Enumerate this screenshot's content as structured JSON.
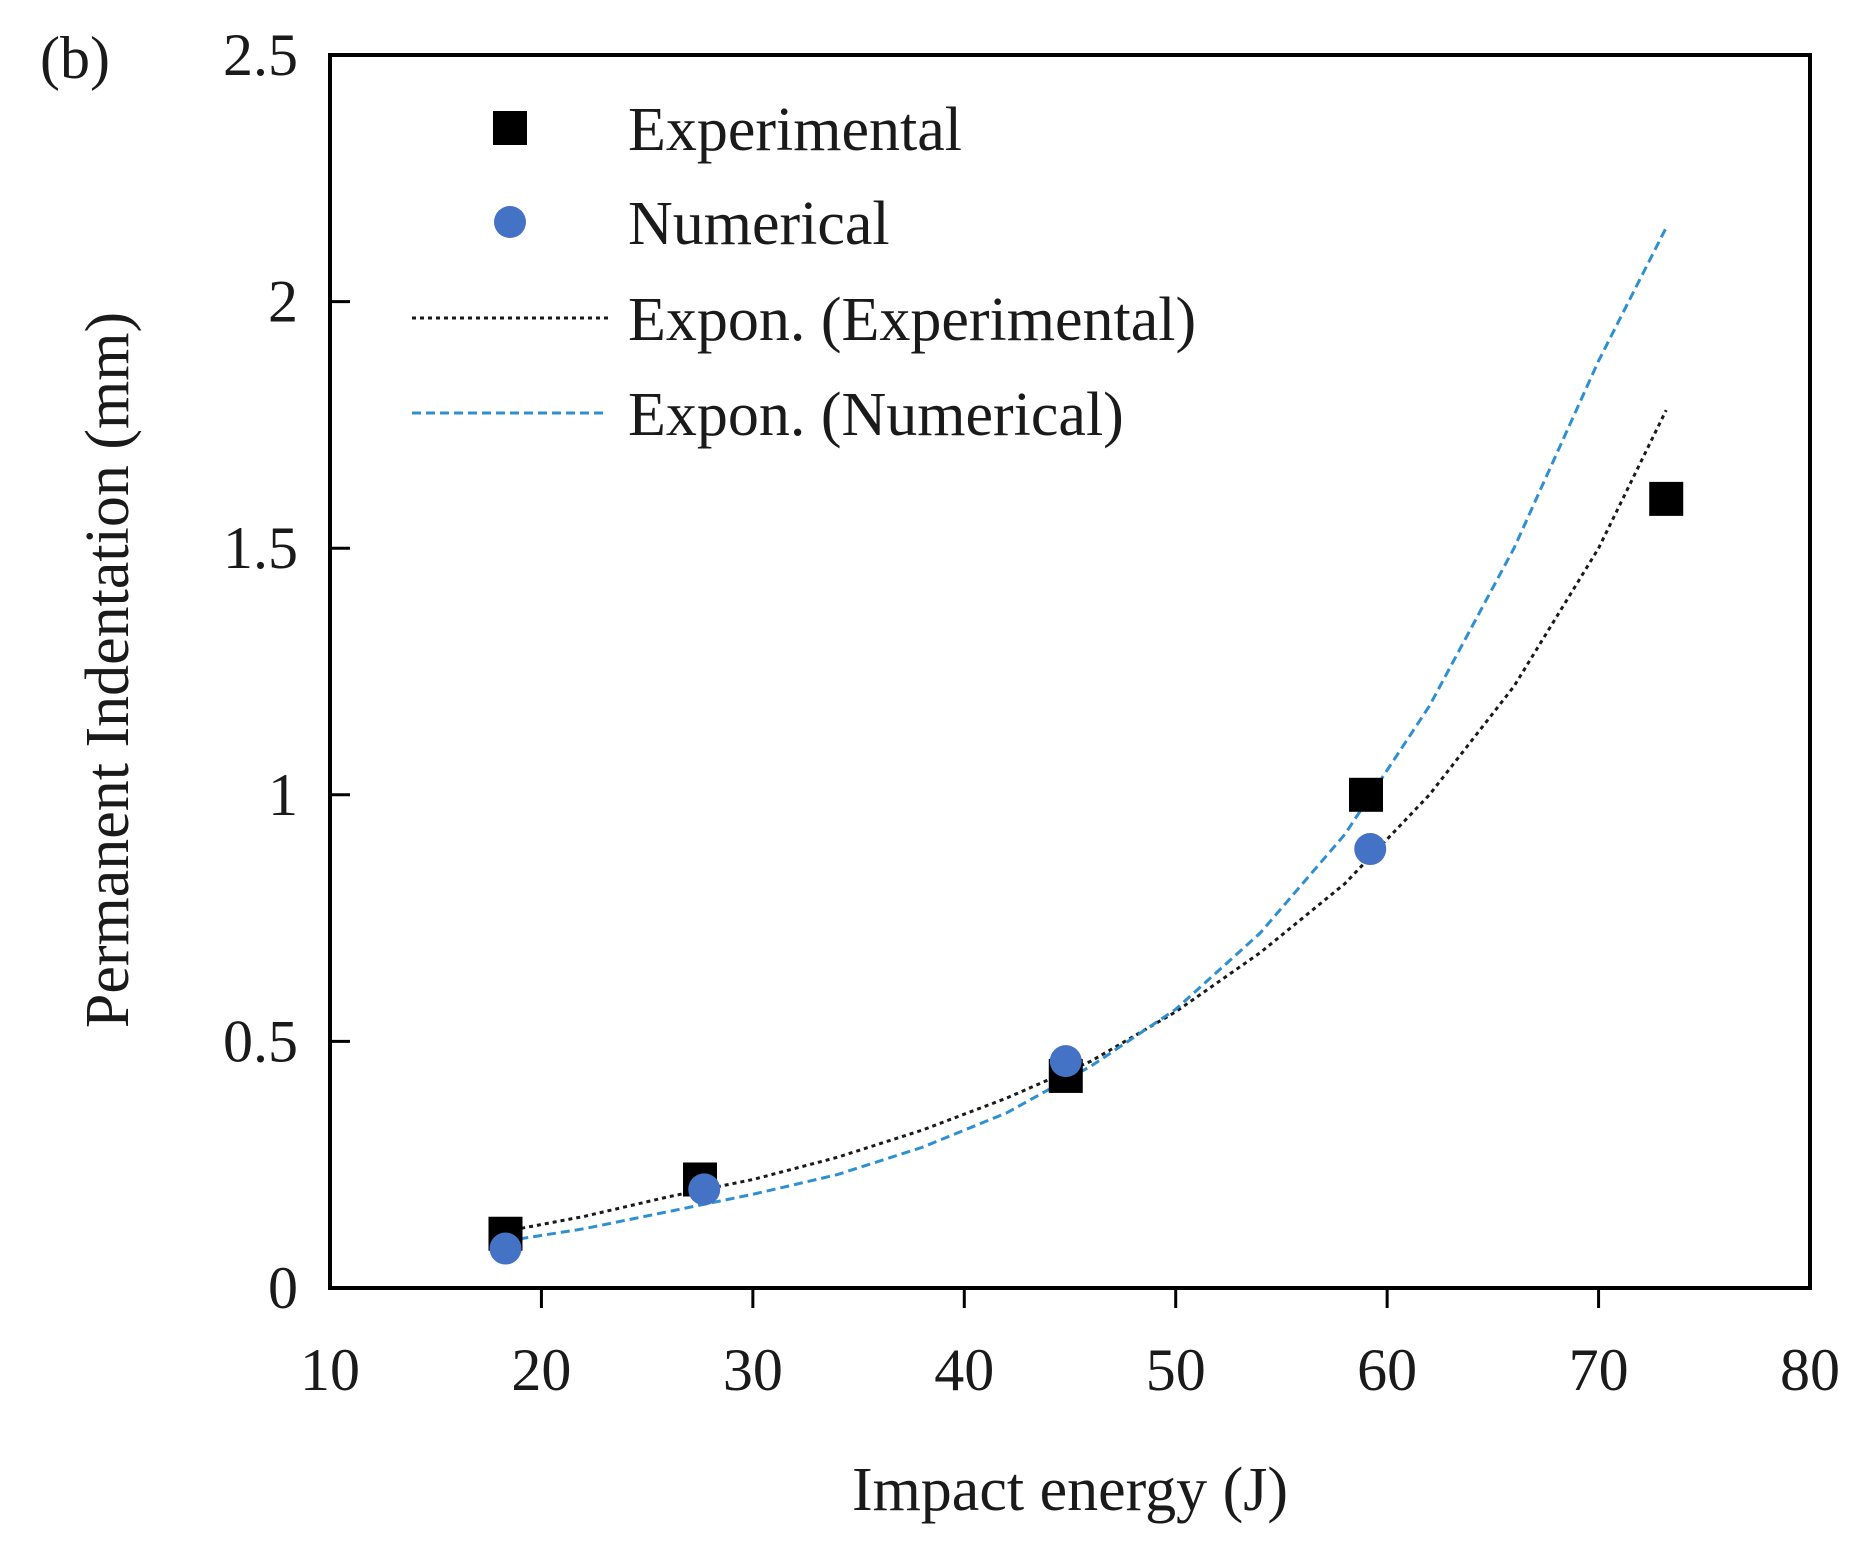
{
  "chart_data": {
    "type": "scatter",
    "panel_label": "(b)",
    "xlabel": "Impact energy (J)",
    "ylabel": "Permanent Indentation (mm)",
    "xlim": [
      10,
      80
    ],
    "ylim": [
      0,
      2.5
    ],
    "x_ticks": [
      "10",
      "20",
      "30",
      "40",
      "50",
      "60",
      "70",
      "80"
    ],
    "y_ticks": [
      "0",
      "0.5",
      "1",
      "1.5",
      "2",
      "2.5"
    ],
    "grid": false,
    "legend_position": "top-left",
    "series": [
      {
        "name": "Experimental",
        "kind": "marker",
        "marker": "square",
        "color": "#000000",
        "x": [
          18.3,
          27.5,
          44.8,
          59.0,
          73.2
        ],
        "y": [
          0.11,
          0.22,
          0.43,
          1.0,
          1.6
        ]
      },
      {
        "name": "Numerical",
        "kind": "marker",
        "marker": "circle",
        "color": "#4472c4",
        "x": [
          18.3,
          27.7,
          44.8,
          59.2
        ],
        "y": [
          0.08,
          0.2,
          0.46,
          0.89
        ]
      },
      {
        "name": "Expon. (Experimental)",
        "kind": "trendline",
        "style": "dotted",
        "color": "#1a1a1a",
        "x": [
          18.3,
          22,
          26,
          30,
          34,
          38,
          42,
          46,
          50,
          54,
          58,
          62,
          66,
          70,
          73.2
        ],
        "y": [
          0.115,
          0.145,
          0.185,
          0.22,
          0.265,
          0.32,
          0.385,
          0.46,
          0.56,
          0.68,
          0.82,
          1.0,
          1.22,
          1.5,
          1.78
        ]
      },
      {
        "name": "Expon. (Numerical)",
        "kind": "trendline",
        "style": "dashed",
        "color": "#2e90d1",
        "x": [
          18.3,
          22,
          26,
          30,
          34,
          38,
          42,
          46,
          50,
          54,
          58,
          62,
          66,
          70,
          73.2
        ],
        "y": [
          0.095,
          0.12,
          0.155,
          0.19,
          0.23,
          0.285,
          0.355,
          0.45,
          0.565,
          0.72,
          0.92,
          1.18,
          1.5,
          1.88,
          2.15
        ]
      }
    ]
  }
}
